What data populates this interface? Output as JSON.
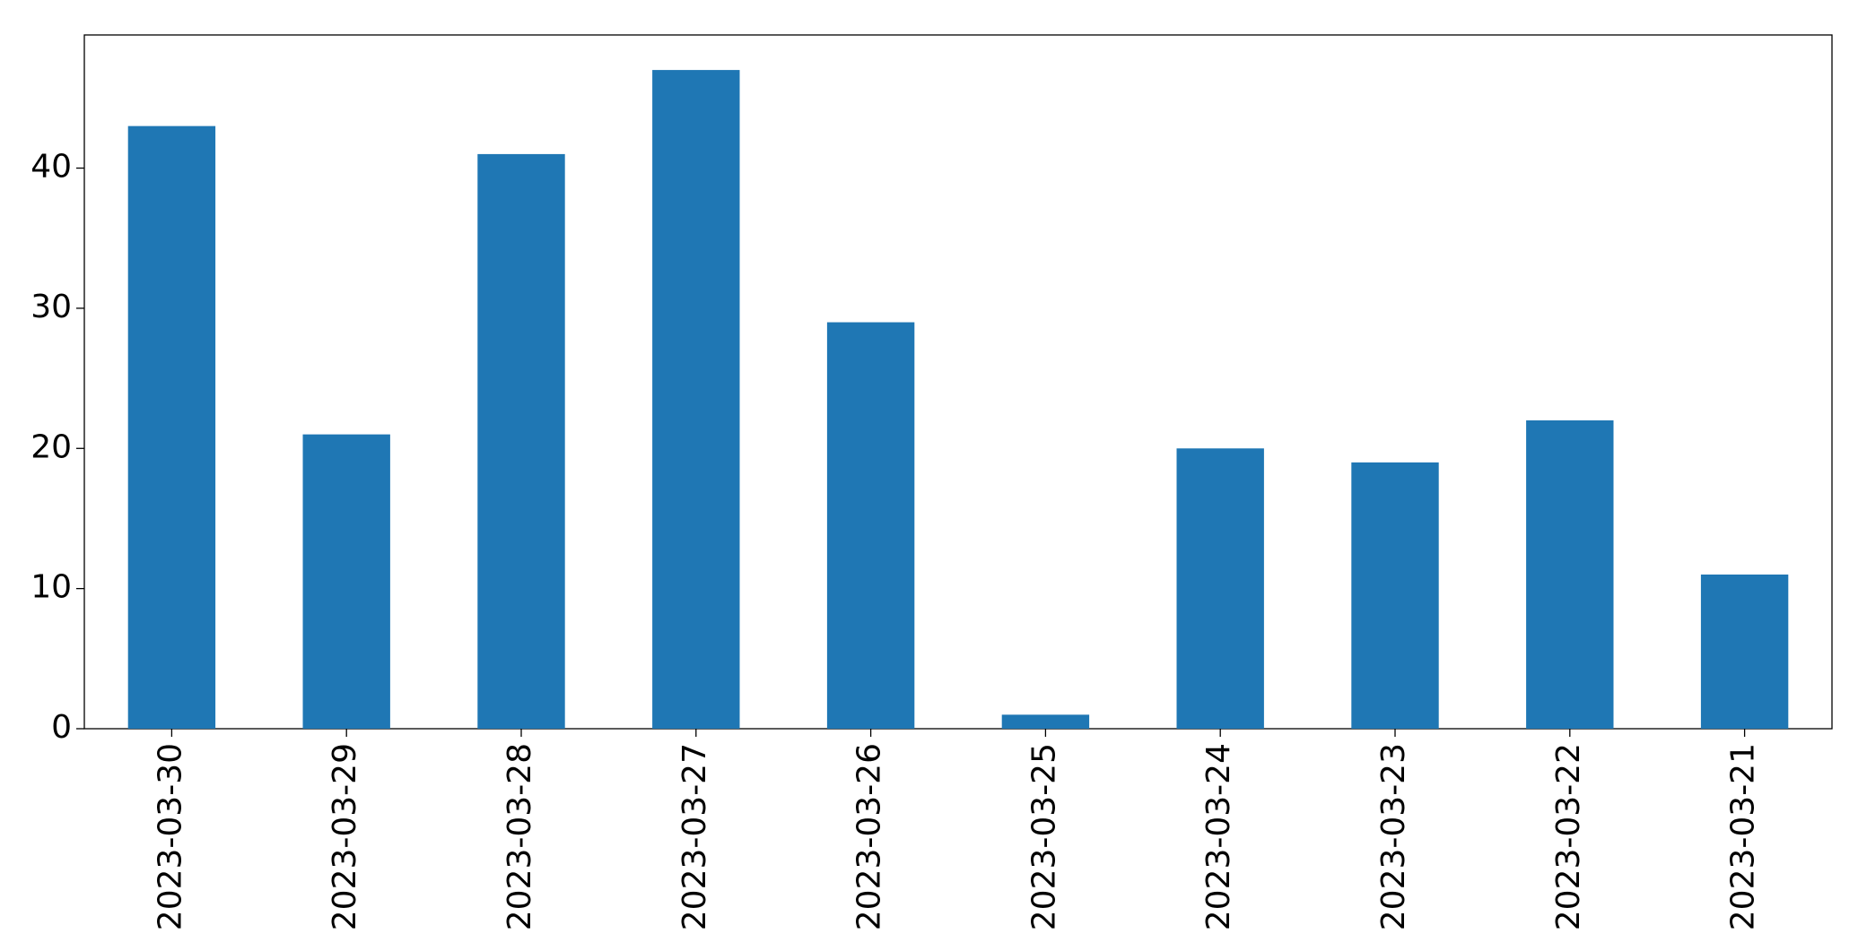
{
  "chart_data": {
    "type": "bar",
    "categories": [
      "2023-03-30",
      "2023-03-29",
      "2023-03-28",
      "2023-03-27",
      "2023-03-26",
      "2023-03-25",
      "2023-03-24",
      "2023-03-23",
      "2023-03-22",
      "2023-03-21"
    ],
    "values": [
      43,
      21,
      41,
      47,
      29,
      1,
      20,
      19,
      22,
      11
    ],
    "color": "#1f77b4",
    "ylim": [
      0,
      49.5
    ],
    "yticks": [
      0,
      10,
      20,
      30,
      40
    ],
    "grid": false
  }
}
